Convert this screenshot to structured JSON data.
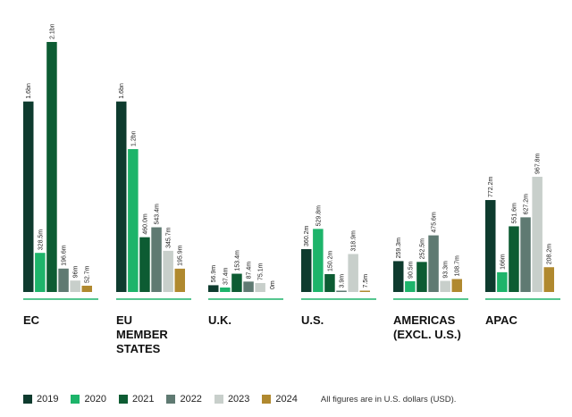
{
  "chart_data": {
    "type": "bar",
    "unit_note": "All figures are in U.S. dollars (USD).",
    "series_names": [
      "2019",
      "2020",
      "2021",
      "2022",
      "2023",
      "2024"
    ],
    "colors": [
      "#0e3b2e",
      "#1db46a",
      "#0d5c33",
      "#5f7a72",
      "#c8cfcb",
      "#b0892f"
    ],
    "groups": [
      {
        "name": "EC",
        "values": [
          1600,
          328.5,
          2100,
          196.6,
          96,
          52.7
        ],
        "labels": [
          "1.6bn",
          "328.5m",
          "2.1bn",
          "196.6m",
          "96m",
          "52.7m"
        ]
      },
      {
        "name": "EU\nMEMBER\nSTATES",
        "values": [
          1600,
          1200,
          460,
          543.4,
          345.7,
          195.9
        ],
        "labels": [
          "1.6bn",
          "1.2bn",
          "460.0m",
          "543.4m",
          "345.7m",
          "195.9m"
        ]
      },
      {
        "name": "U.K.",
        "values": [
          56.9,
          37.4,
          153.4,
          87.4,
          75.1,
          0
        ],
        "labels": [
          "56.9m",
          "37.4m",
          "153.4m",
          "87.4m",
          "75.1m",
          "0m"
        ]
      },
      {
        "name": "U.S.",
        "values": [
          360.2,
          529.8,
          150.2,
          3.9,
          318.9,
          7.5
        ],
        "labels": [
          "360.2m",
          "529.8m",
          "150.2m",
          "3.9m",
          "318.9m",
          "7.5m"
        ]
      },
      {
        "name": "AMERICAS\n(EXCL. U.S.)",
        "values": [
          259.3,
          90.5,
          252.5,
          475.6,
          93.3,
          108.7
        ],
        "labels": [
          "259.3m",
          "90.5m",
          "252.5m",
          "475.6m",
          "93.3m",
          "108.7m"
        ]
      },
      {
        "name": "APAC",
        "values": [
          772.2,
          166,
          551.6,
          627.2,
          967.8,
          208.2
        ],
        "labels": [
          "772.2m",
          "166m",
          "551.6m",
          "627.2m",
          "967.8m",
          "208.2m"
        ]
      }
    ]
  }
}
